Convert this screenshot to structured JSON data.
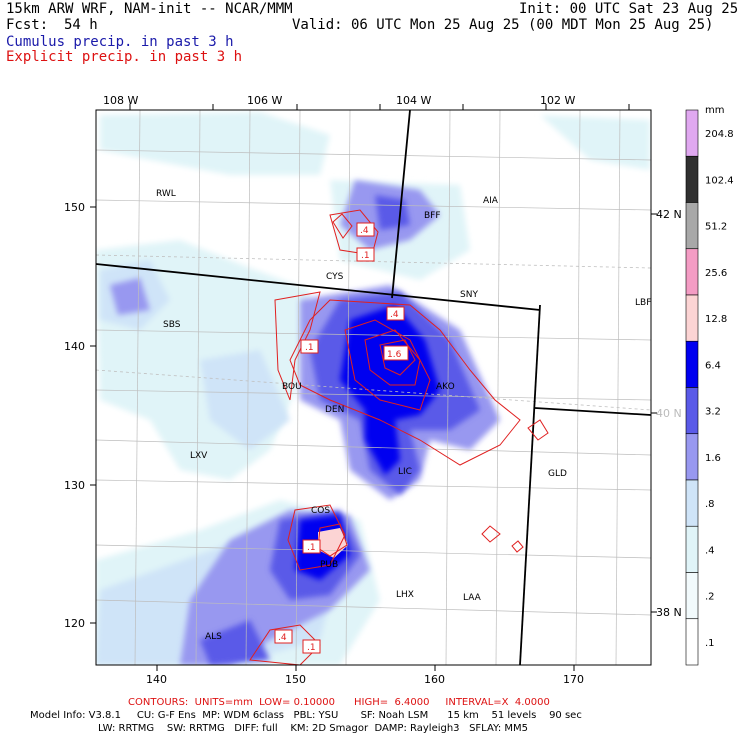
{
  "header": {
    "title": "15km ARW WRF, NAM-init -- NCAR/MMM",
    "init": "Init: 00 UTC Sat 23 Aug 25",
    "fcst_label": "Fcst:",
    "fcst_value": "54 h",
    "valid": "Valid: 06 UTC Mon 25 Aug 25 (00 MDT Mon 25 Aug 25)",
    "cumulus": "Cumulus precip. in past 3 h",
    "explicit": "Explicit precip. in past 3 h"
  },
  "axes": {
    "top_lon": [
      "108 W",
      "106 W",
      "104 W",
      "102 W"
    ],
    "left_y": [
      "150",
      "140",
      "130",
      "120"
    ],
    "bottom_x": [
      "140",
      "150",
      "160",
      "170"
    ],
    "right_lat": [
      "42 N",
      "40 N",
      "38 N"
    ]
  },
  "stations": [
    "RWL",
    "BFF",
    "AIA",
    "CYS",
    "SNY",
    "SBS",
    "BOU",
    "AKO",
    "DEN",
    "LBF",
    "LXV",
    "LIC",
    "GLD",
    "COS",
    "PUB",
    "LHX",
    "LAA",
    "ALS"
  ],
  "contour_labels": [
    ".4",
    ".1",
    ".4",
    ".1",
    "1.6",
    ".1",
    ".1",
    ".4"
  ],
  "colorbar": {
    "unit": "mm",
    "levels": [
      "204.8",
      "102.4",
      "51.2",
      "25.6",
      "12.8",
      "6.4",
      "3.2",
      "1.6",
      ".8",
      ".4",
      ".2",
      ".1"
    ],
    "colors": [
      "#e0a8f0",
      "#303030",
      "#a8a8a8",
      "#f49cc4",
      "#fcd4d4",
      "#0000f0",
      "#5a5ae8",
      "#9898f0",
      "#cfe4f8",
      "#e0f4f8",
      "#f2fafc",
      "#ffffff"
    ]
  },
  "footer": {
    "contours": "CONTOURS:  UNITS=mm  LOW= 0.10000      HIGH=  6.4000     INTERVAL=X  4.0000",
    "model_line1": "Model Info: V3.8.1     CU: G-F Ens  MP: WDM 6class   PBL: YSU       SF: Noah LSM      15 km    51 levels    90 sec",
    "model_line2": "LW: RRTMG    SW: RRTMG   DIFF: full    KM: 2D Smagor  DAMP: Rayleigh3   SFLAY: MM5"
  }
}
